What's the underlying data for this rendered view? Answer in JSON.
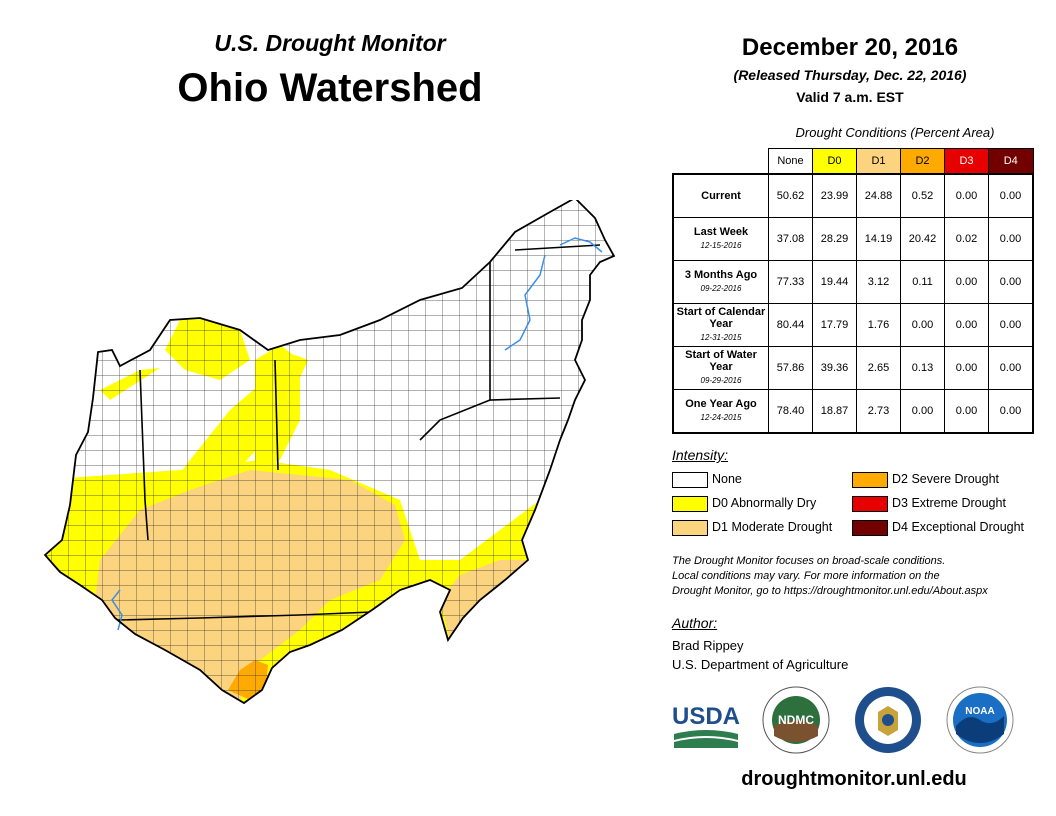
{
  "header": {
    "subtitle": "U.S. Drought Monitor",
    "title": "Ohio Watershed",
    "date": "December 20, 2016",
    "released": "(Released Thursday, Dec. 22, 2016)",
    "valid": "Valid 7 a.m. EST"
  },
  "table": {
    "title": "Drought Conditions (Percent Area)",
    "columns": [
      "None",
      "D0",
      "D1",
      "D2",
      "D3",
      "D4"
    ],
    "column_colors": [
      "#ffffff",
      "#ffff00",
      "#fcd37f",
      "#ffaa00",
      "#e60000",
      "#730000"
    ],
    "rows": [
      {
        "label": "Current",
        "date": "",
        "values": [
          "50.62",
          "23.99",
          "24.88",
          "0.52",
          "0.00",
          "0.00"
        ]
      },
      {
        "label": "Last Week",
        "date": "12-15-2016",
        "values": [
          "37.08",
          "28.29",
          "14.19",
          "20.42",
          "0.02",
          "0.00"
        ]
      },
      {
        "label": "3 Months Ago",
        "date": "09-22-2016",
        "values": [
          "77.33",
          "19.44",
          "3.12",
          "0.11",
          "0.00",
          "0.00"
        ]
      },
      {
        "label": "Start of Calendar Year",
        "date": "12-31-2015",
        "values": [
          "80.44",
          "17.79",
          "1.76",
          "0.00",
          "0.00",
          "0.00"
        ]
      },
      {
        "label": "Start of Water Year",
        "date": "09-29-2016",
        "values": [
          "57.86",
          "39.36",
          "2.65",
          "0.13",
          "0.00",
          "0.00"
        ]
      },
      {
        "label": "One Year Ago",
        "date": "12-24-2015",
        "values": [
          "78.40",
          "18.87",
          "2.73",
          "0.00",
          "0.00",
          "0.00"
        ]
      }
    ]
  },
  "legend": {
    "title": "Intensity:",
    "items": [
      {
        "label": "None",
        "color": "#ffffff"
      },
      {
        "label": "D0 Abnormally Dry",
        "color": "#ffff00"
      },
      {
        "label": "D1 Moderate Drought",
        "color": "#fcd37f"
      },
      {
        "label": "D2 Severe Drought",
        "color": "#ffaa00"
      },
      {
        "label": "D3 Extreme Drought",
        "color": "#e60000"
      },
      {
        "label": "D4 Exceptional Drought",
        "color": "#730000"
      }
    ]
  },
  "note": {
    "line1": "The Drought Monitor focuses on broad-scale conditions.",
    "line2": "Local conditions may vary. For more information on the",
    "line3": "Drought Monitor, go to https://droughtmonitor.unl.edu/About.aspx"
  },
  "author": {
    "heading": "Author:",
    "name": "Brad Rippey",
    "org": "U.S. Department of Agriculture"
  },
  "logos": {
    "usda": "USDA",
    "ndmc": "NDMC",
    "noaa": "NOAA"
  },
  "website": "droughtmonitor.unl.edu"
}
